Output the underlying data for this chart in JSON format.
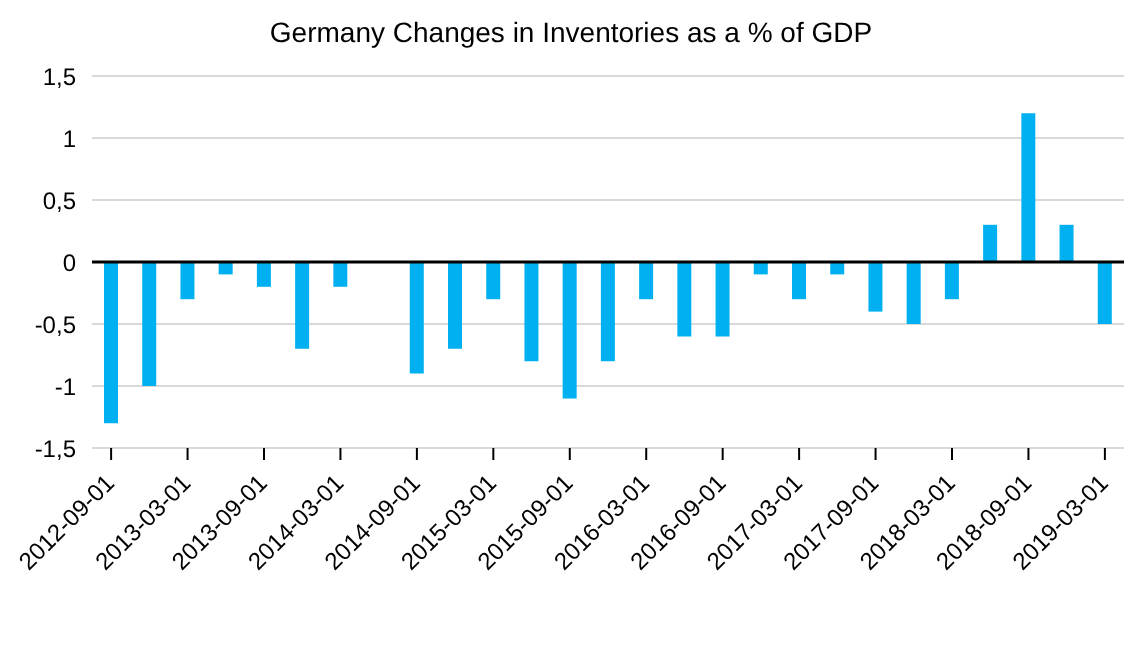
{
  "chart_data": {
    "type": "bar",
    "title": "Germany Changes in Inventories as a % of GDP",
    "categories": [
      "2012-09-01",
      null,
      "2013-03-01",
      null,
      "2013-09-01",
      null,
      "2014-03-01",
      null,
      "2014-09-01",
      null,
      "2015-03-01",
      null,
      "2015-09-01",
      null,
      "2016-03-01",
      null,
      "2016-09-01",
      null,
      "2017-03-01",
      null,
      "2017-09-01",
      null,
      "2018-03-01",
      null,
      "2018-09-01",
      null,
      "2019-03-01"
    ],
    "values": [
      -1.3,
      -1.0,
      -0.3,
      -0.1,
      -0.2,
      -0.7,
      -0.2,
      0,
      -0.9,
      -0.7,
      -0.3,
      -0.8,
      -1.1,
      -0.8,
      -0.3,
      -0.6,
      -0.6,
      -0.1,
      -0.3,
      -0.1,
      -0.4,
      -0.5,
      -0.3,
      0.3,
      1.2,
      0.3,
      -0.5
    ],
    "color": "#00b0f0",
    "ylim": [
      -1.5,
      1.5
    ],
    "yticks": [
      {
        "value": -1.5,
        "label": "-1,5"
      },
      -1,
      {
        "value": -0.5,
        "label": "-0,5"
      },
      0,
      {
        "value": 0.5,
        "label": "0,5"
      },
      1,
      {
        "value": 1.5,
        "label": "1,5"
      }
    ],
    "grid": "y"
  }
}
